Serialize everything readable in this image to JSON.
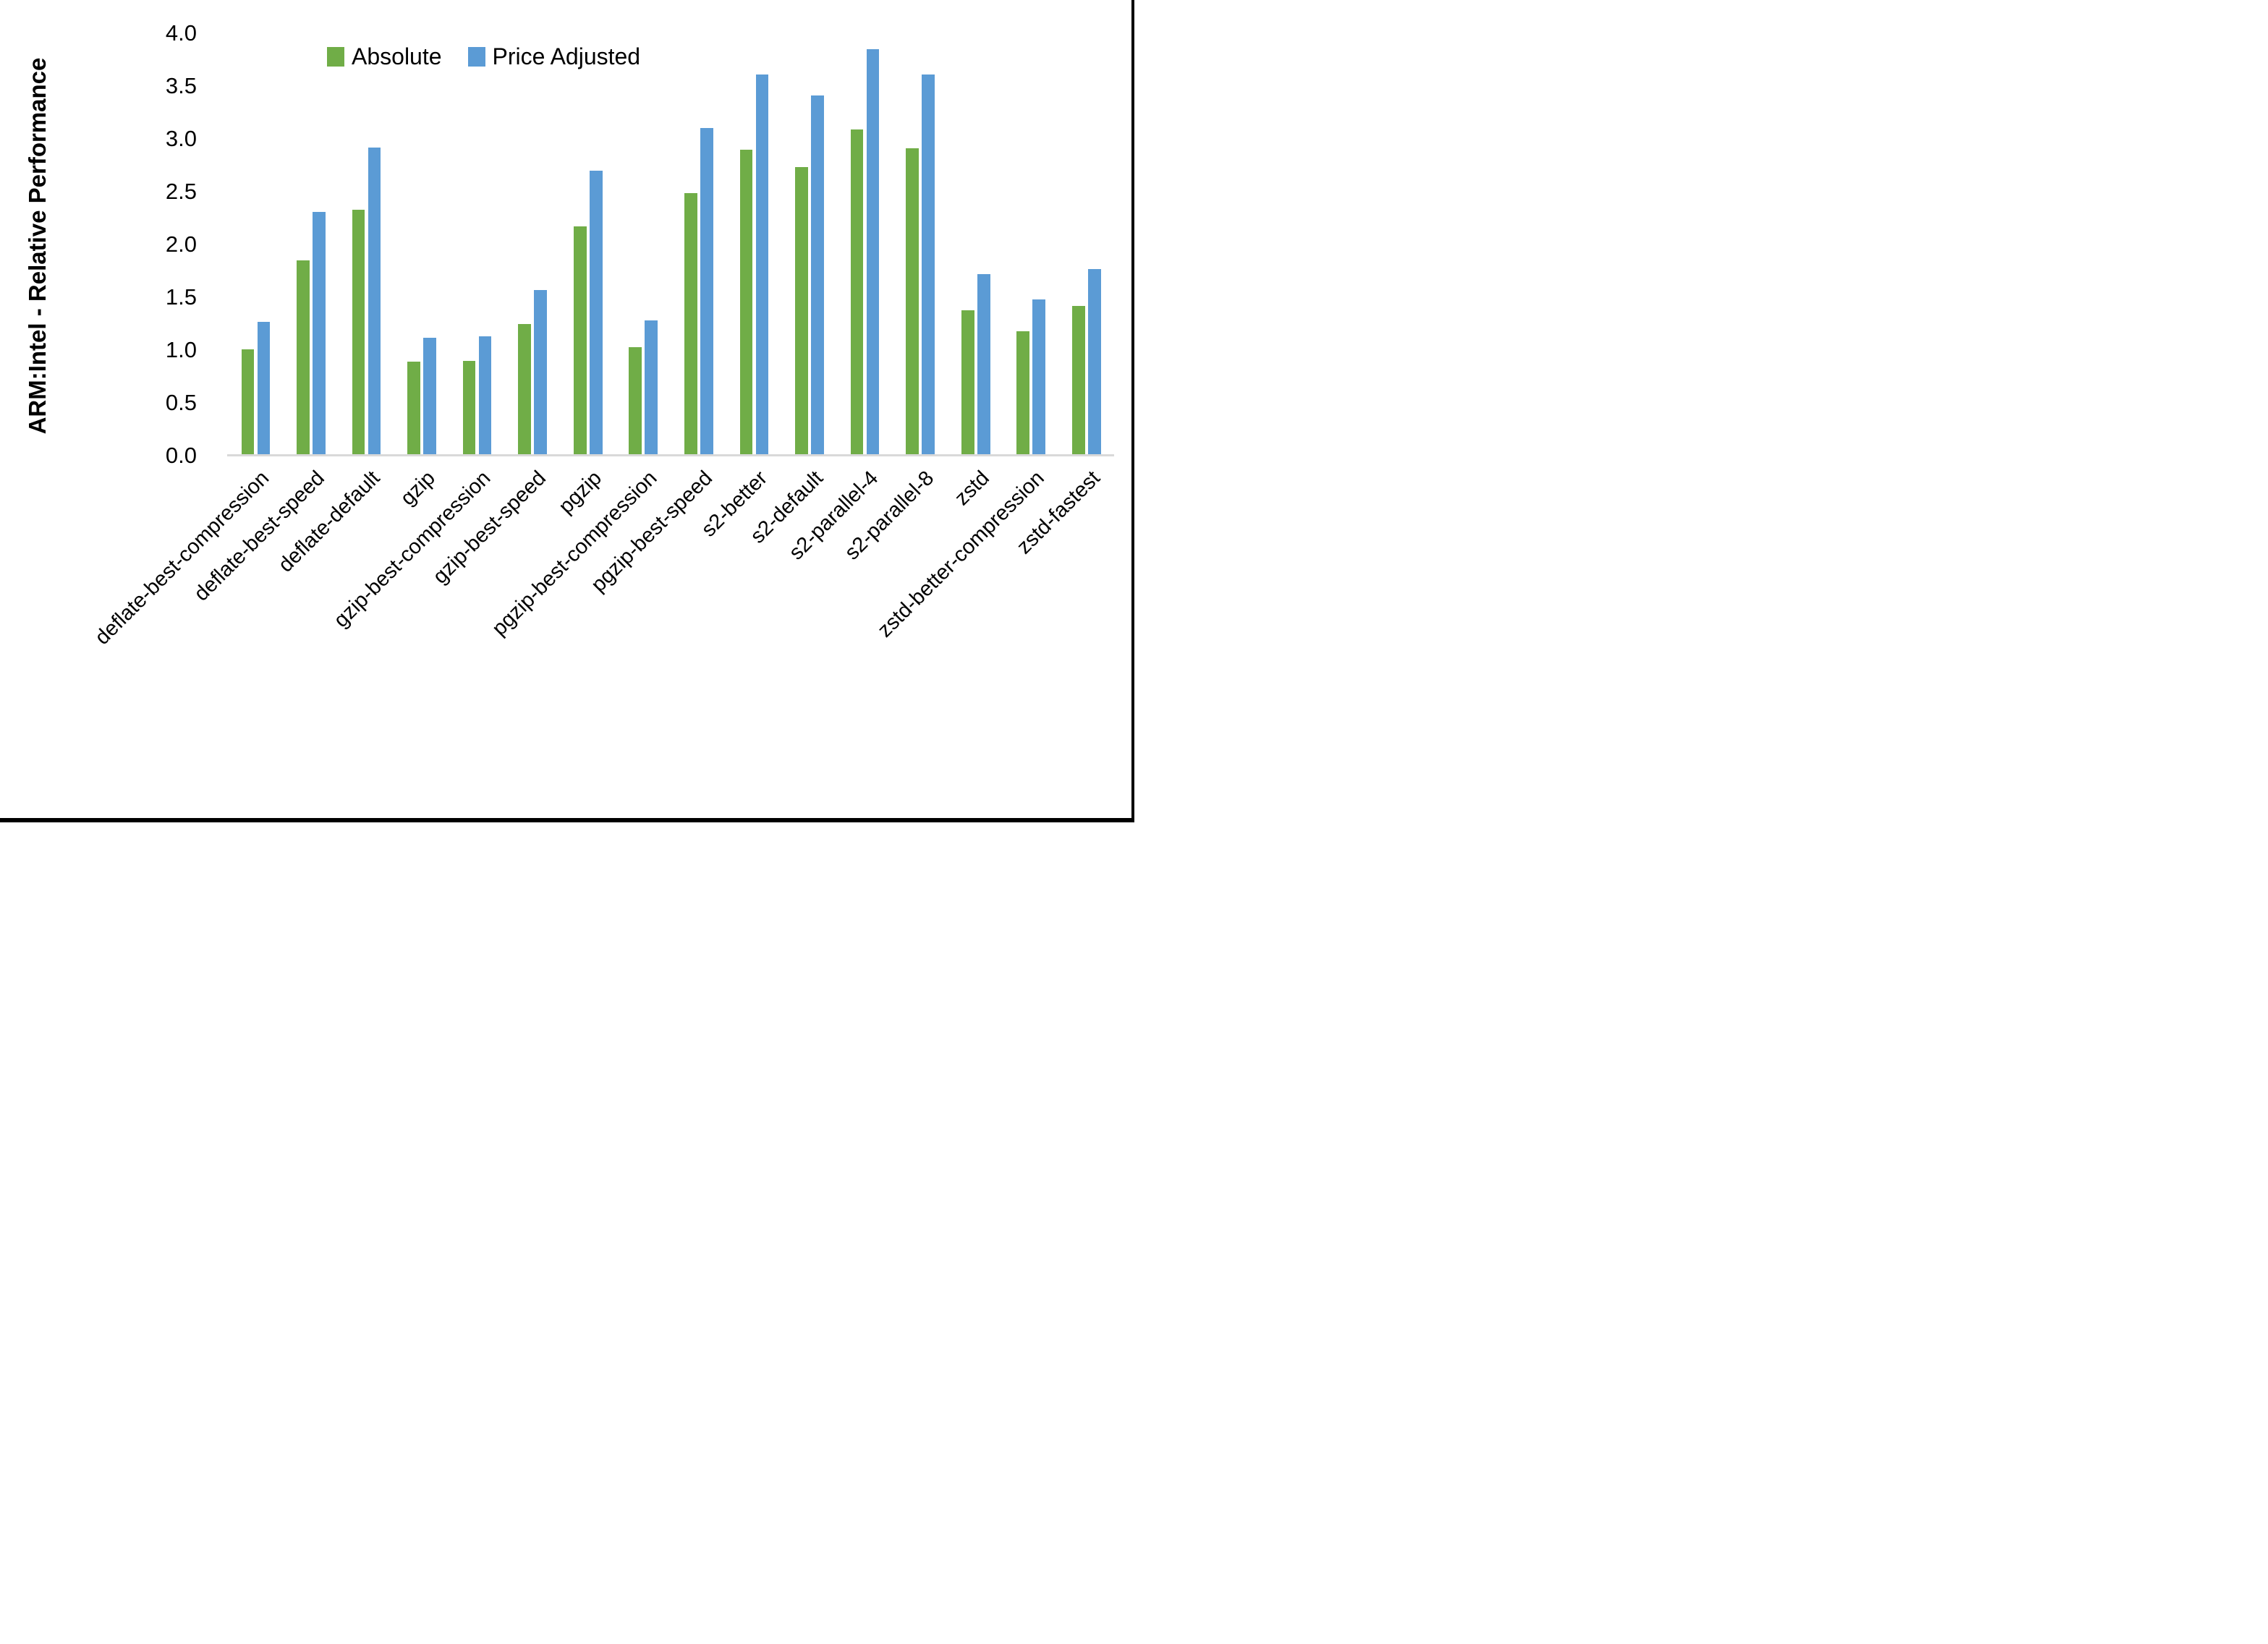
{
  "page": {
    "background_color": "#ffffff",
    "right_border_color": "#000000",
    "bottom_border_color": "#000000"
  },
  "chart_data": {
    "type": "bar",
    "title": "",
    "xlabel": "",
    "ylabel": "ARM:Intel - Relative Performance",
    "ylim": [
      0.0,
      4.0
    ],
    "ytick_step": 0.5,
    "yticks": [
      "0.0",
      "0.5",
      "1.0",
      "1.5",
      "2.0",
      "2.5",
      "3.0",
      "3.5",
      "4.0"
    ],
    "grid": false,
    "legend_position": "top-center",
    "axis_line_color": "#D9D9D9",
    "text_color": "#000000",
    "categories": [
      "deflate-best-compression",
      "deflate-best-speed",
      "deflate-default",
      "gzip",
      "gzip-best-compression",
      "gzip-best-speed",
      "pgzip",
      "pgzip-best-compression",
      "pgzip-best-speed",
      "s2-better",
      "s2-default",
      "s2-parallel-4",
      "s2-parallel-8",
      "zstd",
      "zstd-better-compression",
      "zstd-fastest"
    ],
    "series": [
      {
        "name": "Absolute",
        "color": "#70AD47",
        "values": [
          1.01,
          1.85,
          2.33,
          0.89,
          0.9,
          1.25,
          2.17,
          1.03,
          2.49,
          2.9,
          2.73,
          3.09,
          2.91,
          1.38,
          1.18,
          1.42
        ]
      },
      {
        "name": "Price Adjusted",
        "color": "#5B9BD5",
        "values": [
          1.27,
          2.31,
          2.92,
          1.12,
          1.13,
          1.57,
          2.7,
          1.28,
          3.1,
          3.61,
          3.41,
          3.85,
          3.61,
          1.72,
          1.48,
          1.77
        ]
      }
    ]
  }
}
